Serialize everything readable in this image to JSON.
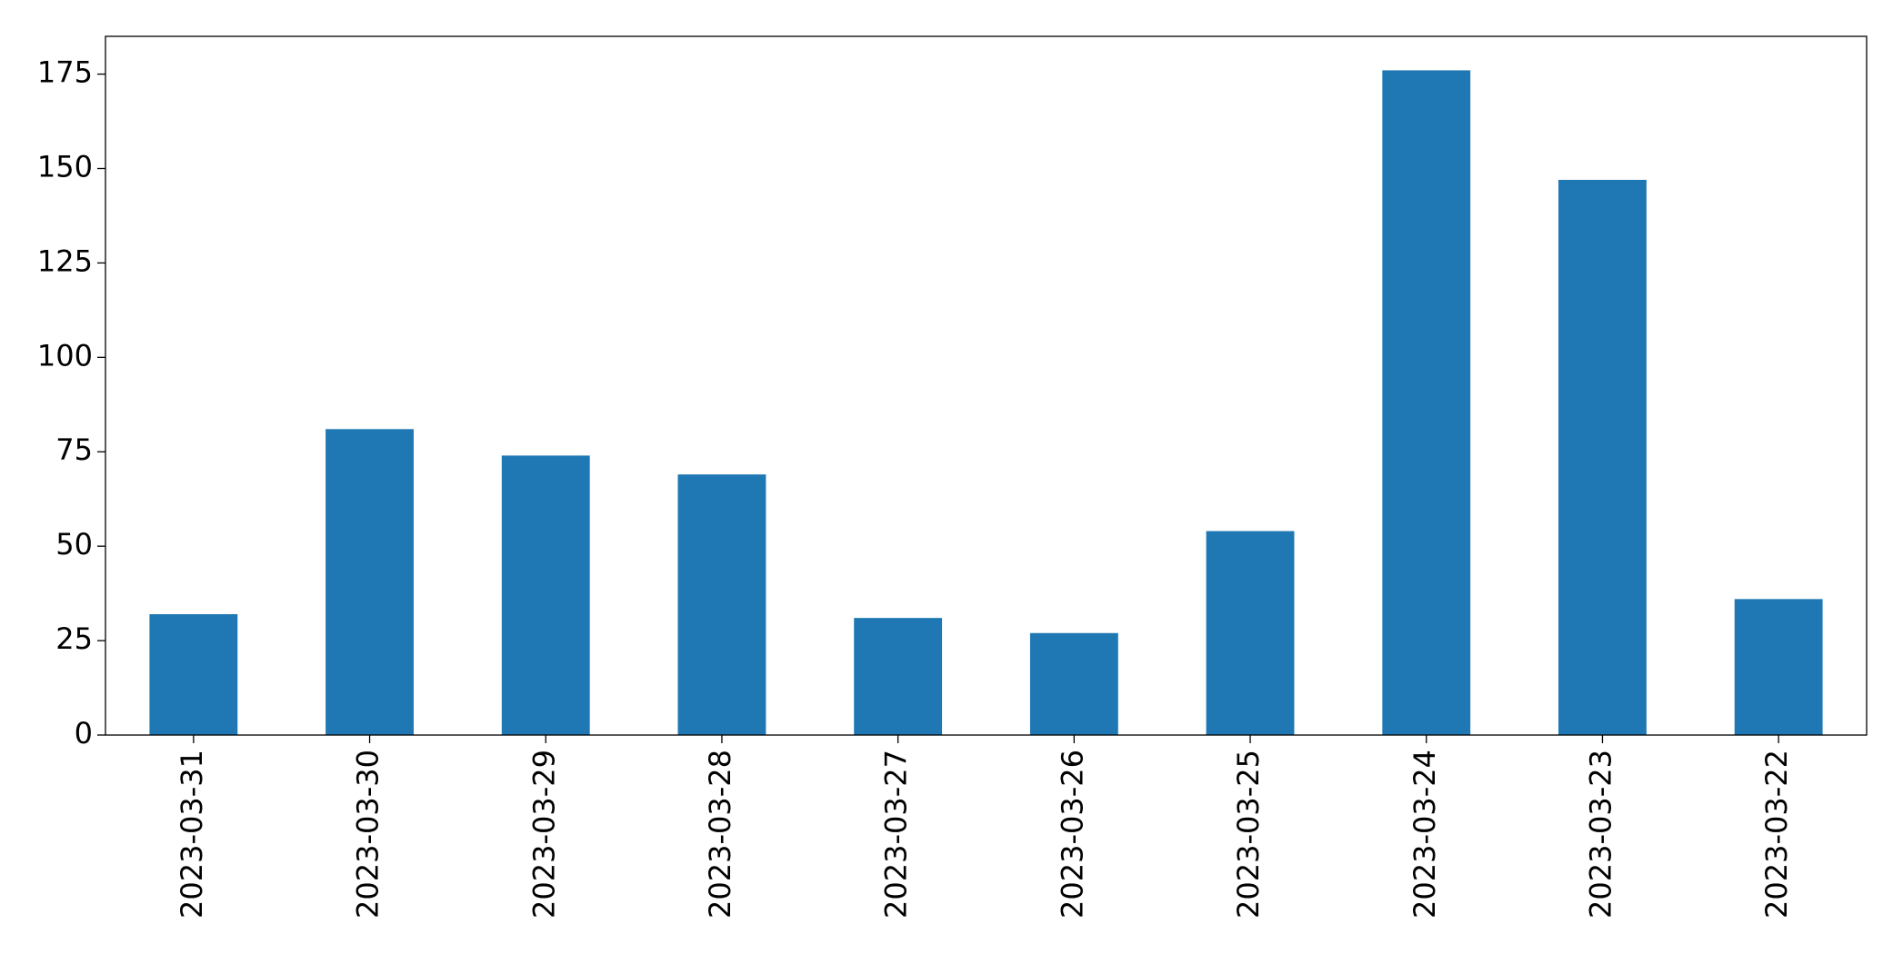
{
  "chart_data": {
    "type": "bar",
    "categories": [
      "2023-03-31",
      "2023-03-30",
      "2023-03-29",
      "2023-03-28",
      "2023-03-27",
      "2023-03-26",
      "2023-03-25",
      "2023-03-24",
      "2023-03-23",
      "2023-03-22"
    ],
    "values": [
      32,
      81,
      74,
      69,
      31,
      27,
      54,
      176,
      147,
      36
    ],
    "color": "#1f77b4",
    "ylim": [
      0,
      185
    ],
    "yticks": [
      0,
      25,
      50,
      75,
      100,
      125,
      150,
      175
    ],
    "grid": false
  }
}
